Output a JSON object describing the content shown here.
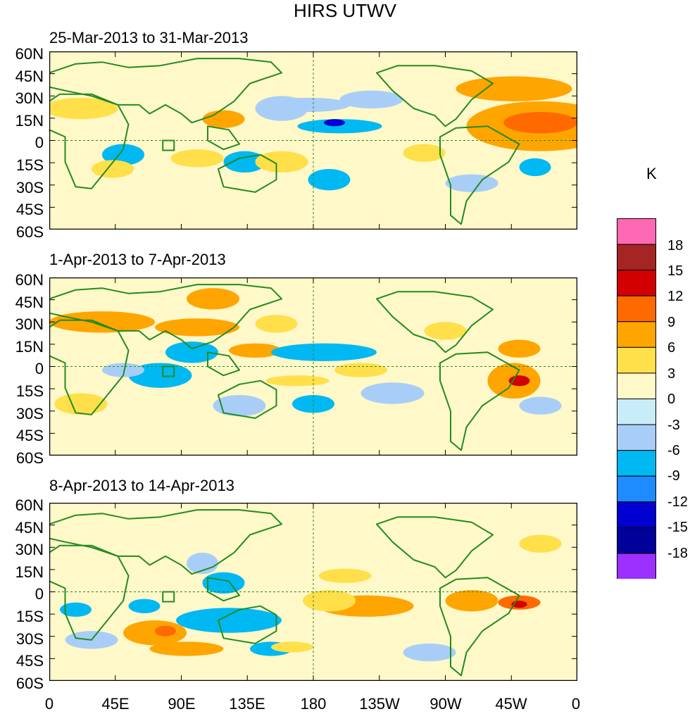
{
  "title": "HIRS UTWV",
  "unit": "K",
  "panels": [
    {
      "subtitle": "25-Mar-2013 to 31-Mar-2013"
    },
    {
      "subtitle": "1-Apr-2013 to 7-Apr-2013"
    },
    {
      "subtitle": "8-Apr-2013 to 14-Apr-2013"
    }
  ],
  "lat_labels": [
    "60N",
    "45N",
    "30N",
    "15N",
    "0",
    "15S",
    "30S",
    "45S",
    "60S"
  ],
  "lon_labels": [
    "0",
    "45E",
    "90E",
    "135E",
    "180",
    "135W",
    "90W",
    "45W",
    "0"
  ],
  "colorbar": {
    "labels": [
      "18",
      "15",
      "12",
      "9",
      "6",
      "3",
      "0",
      "-3",
      "-6",
      "-9",
      "-12",
      "-15",
      "-18"
    ],
    "colors": [
      "#ff69b4",
      "#a52424",
      "#d20000",
      "#ff6a00",
      "#ffa500",
      "#ffe04a",
      "#fff8c8",
      "#c8ecf8",
      "#a8cef8",
      "#00b8f2",
      "#1e8cff",
      "#0000d2",
      "#00009a",
      "#9b30ff"
    ]
  },
  "map_colors": {
    "land": "#228b22",
    "guide": "#228b22"
  }
}
